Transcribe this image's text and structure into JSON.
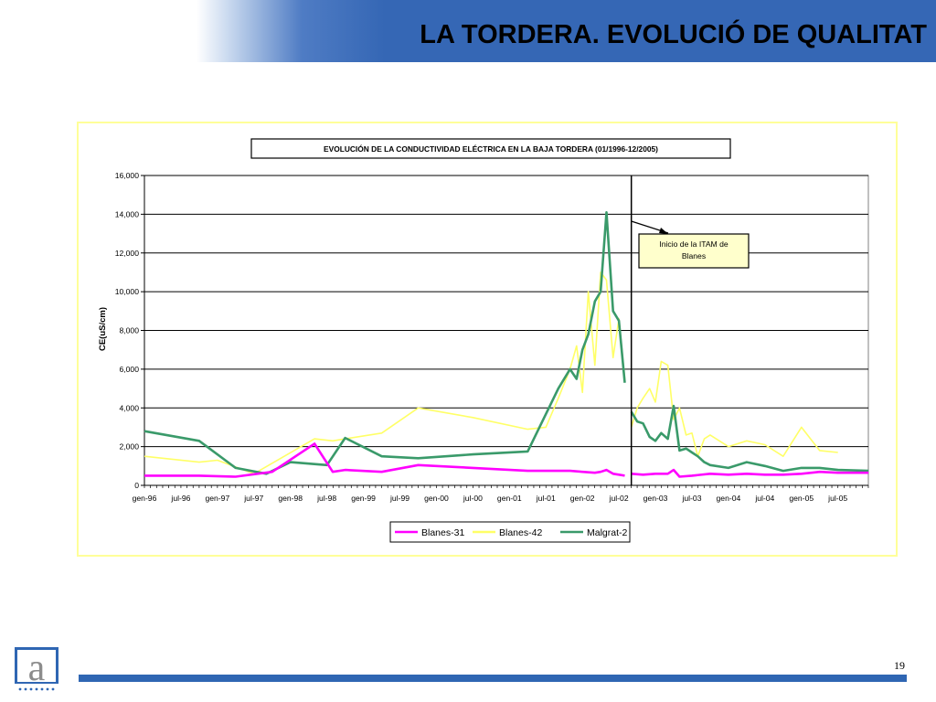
{
  "slide": {
    "title": "LA TORDERA. EVOLUCIÓ DE QUALITAT",
    "page_number": "19",
    "colors": {
      "header_blue": "#3567b5",
      "footer_blue": "#2f66b3",
      "frame_yellow": "#ffff99"
    },
    "logo_icon": "agency-logo-a-icon"
  },
  "chart_data": {
    "type": "line",
    "title": "EVOLUCIÓN DE LA CONDUCTIVIDAD ELÉCTRICA EN LA BAJA TORDERA (01/1996-12/2005)",
    "ylabel": "CE(uS/cm)",
    "xlabel": "",
    "ylim": [
      0,
      16000
    ],
    "yticks": [
      0,
      2000,
      4000,
      6000,
      8000,
      10000,
      12000,
      14000,
      16000
    ],
    "ytick_labels": [
      "0",
      "2,000",
      "4,000",
      "6,000",
      "8,000",
      "10,000",
      "12,000",
      "14,000",
      "16,000"
    ],
    "xlim": [
      1996.0,
      2005.917
    ],
    "xticks": [
      1996.0,
      1996.5,
      1997.0,
      1997.5,
      1998.0,
      1998.5,
      1999.0,
      1999.5,
      2000.0,
      2000.5,
      2001.0,
      2001.5,
      2002.0,
      2002.5,
      2003.0,
      2003.5,
      2004.0,
      2004.5,
      2005.0,
      2005.5
    ],
    "xtick_labels": [
      "gen-96",
      "jul-96",
      "gen-97",
      "jul-97",
      "gen-98",
      "jul-98",
      "gen-99",
      "jul-99",
      "gen-00",
      "jul-00",
      "gen-01",
      "jul-01",
      "gen-02",
      "jul-02",
      "gen-03",
      "jul-03",
      "gen-04",
      "jul-04",
      "gen-05",
      "jul-05"
    ],
    "grid": "horizontal",
    "legend": "bottom",
    "annotation": {
      "text": "Inicio de la ITAM de Blanes",
      "x": 2002.67
    },
    "series": [
      {
        "name": "Blanes-31",
        "color": "#ff00ff",
        "x": [
          1996.0,
          1996.75,
          1997.25,
          1997.75,
          1998.33,
          1998.58,
          1998.75,
          1999.25,
          1999.75,
          2000.5,
          2001.25,
          2001.67,
          2001.83,
          2002.0,
          2002.17,
          2002.25,
          2002.33,
          2002.42,
          2002.5,
          2002.58,
          2002.67,
          2002.83,
          2003.0,
          2003.17,
          2003.25,
          2003.33,
          2003.5,
          2003.75,
          2004.0,
          2004.25,
          2004.5,
          2004.75,
          2005.0,
          2005.25,
          2005.5,
          2005.92
        ],
        "y": [
          500,
          500,
          450,
          700,
          2150,
          700,
          800,
          700,
          1050,
          900,
          750,
          750,
          750,
          700,
          650,
          700,
          800,
          600,
          550,
          500,
          600,
          550,
          600,
          600,
          800,
          450,
          500,
          600,
          550,
          600,
          550,
          550,
          600,
          700,
          650,
          650
        ],
        "breaks_after": [
          19
        ]
      },
      {
        "name": "Blanes-42",
        "color": "#ffff66",
        "x": [
          1996.0,
          1996.75,
          1997.0,
          1997.5,
          1998.33,
          1998.58,
          1998.75,
          1999.25,
          1999.75,
          2000.5,
          2001.25,
          2001.5,
          2001.67,
          2001.83,
          2001.92,
          2002.0,
          2002.08,
          2002.17,
          2002.25,
          2002.33,
          2002.42,
          2002.5,
          2002.58,
          2002.67,
          2002.75,
          2002.83,
          2002.92,
          2003.0,
          2003.08,
          2003.17,
          2003.25,
          2003.33,
          2003.42,
          2003.5,
          2003.58,
          2003.67,
          2003.75,
          2004.0,
          2004.25,
          2004.5,
          2004.75,
          2005.0,
          2005.25,
          2005.5
        ],
        "y": [
          1500,
          1200,
          1300,
          600,
          2400,
          2300,
          2400,
          2700,
          4000,
          3500,
          2900,
          3000,
          4500,
          6000,
          7200,
          4800,
          10000,
          6200,
          11000,
          10600,
          6600,
          8600,
          5500,
          3000,
          4000,
          4500,
          5000,
          4300,
          6400,
          6200,
          3400,
          4000,
          2600,
          2700,
          1500,
          2400,
          2600,
          2000,
          2300,
          2100,
          1500,
          3000,
          1800,
          1700
        ],
        "breaks_after": [
          22
        ]
      },
      {
        "name": "Malgrat-2",
        "color": "#3a9a6a",
        "x": [
          1996.0,
          1996.75,
          1997.25,
          1997.67,
          1998.0,
          1998.5,
          1998.75,
          1999.25,
          1999.75,
          2000.5,
          2001.25,
          2001.67,
          2001.83,
          2001.92,
          2002.0,
          2002.08,
          2002.17,
          2002.25,
          2002.33,
          2002.42,
          2002.5,
          2002.58,
          2002.67,
          2002.75,
          2002.83,
          2002.92,
          2003.0,
          2003.08,
          2003.17,
          2003.25,
          2003.33,
          2003.42,
          2003.5,
          2003.58,
          2003.67,
          2003.75,
          2004.0,
          2004.25,
          2004.5,
          2004.75,
          2005.0,
          2005.25,
          2005.5,
          2005.92
        ],
        "y": [
          2800,
          2300,
          900,
          600,
          1200,
          1050,
          2450,
          1500,
          1400,
          1600,
          1750,
          5000,
          6000,
          5500,
          7000,
          7800,
          9500,
          10000,
          14100,
          9000,
          8500,
          5300,
          3800,
          3300,
          3200,
          2500,
          2300,
          2700,
          2400,
          4100,
          1800,
          1900,
          1700,
          1500,
          1200,
          1050,
          900,
          1200,
          1000,
          750,
          900,
          900,
          800,
          750
        ],
        "breaks_after": [
          21
        ]
      }
    ]
  }
}
